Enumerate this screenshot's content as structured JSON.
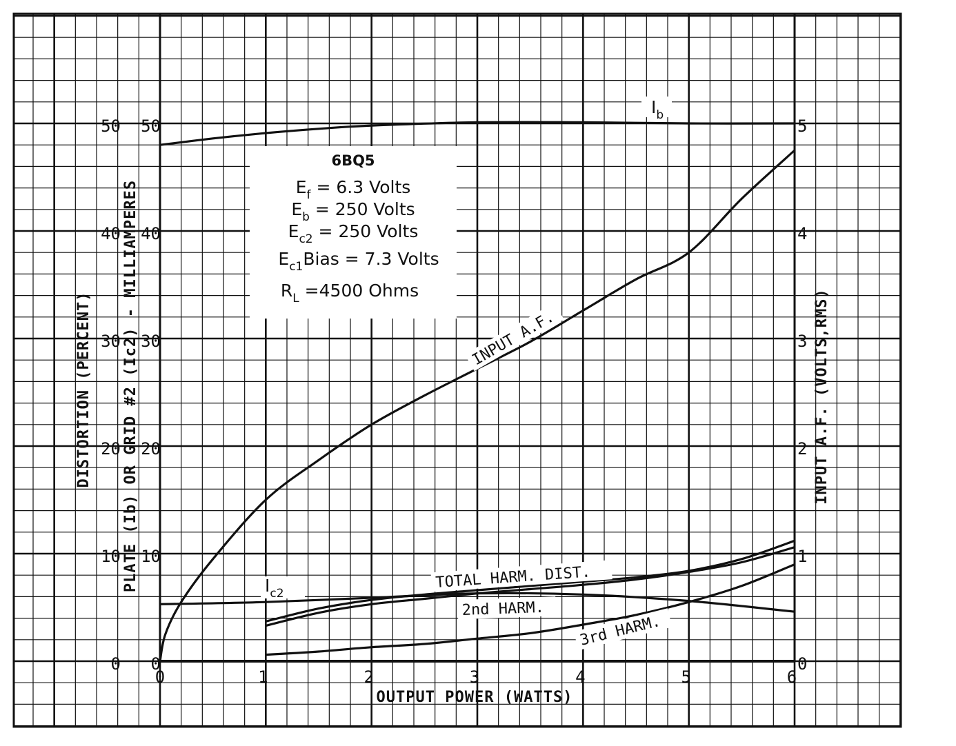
{
  "chart_data": {
    "type": "line",
    "title": "6BQ5",
    "conditions": [
      {
        "main": "E",
        "sub": "f",
        "rest": " = 6.3 Volts"
      },
      {
        "main": "E",
        "sub": "b",
        "rest": " = 250 Volts"
      },
      {
        "main": "E",
        "sub": "c2",
        "rest": " = 250 Volts"
      },
      {
        "main": "E",
        "sub": "c1",
        "rest": "Bias = 7.3 Volts"
      },
      {
        "main": "R",
        "sub": "L",
        "rest": " =4500 Ohms"
      }
    ],
    "xlabel": "OUTPUT POWER (WATTS)",
    "ylabel_distortion": "DISTORTION (PERCENT)",
    "ylabel_current": "PLATE (Ib) OR GRID #2 (Ic2) - MILLIAMPERES",
    "ylabel_right": "INPUT A.F. (VOLTS,RMS)",
    "xlim": [
      0,
      6
    ],
    "ylim_left": [
      0,
      50
    ],
    "ylim_right": [
      0,
      5
    ],
    "x_ticks": [
      "0",
      "1",
      "2",
      "3",
      "4",
      "5",
      "6"
    ],
    "y_ticks_distortion": [
      "0",
      "10",
      "20",
      "30",
      "40",
      "50"
    ],
    "y_ticks_current": [
      "0",
      "10",
      "20",
      "30",
      "40",
      "50"
    ],
    "y_ticks_right": [
      "0",
      "1",
      "2",
      "3",
      "4",
      "5"
    ],
    "grid": true,
    "series": [
      {
        "name": "Ib",
        "label_main": "I",
        "label_sub": "b",
        "axis": "left",
        "x": [
          0,
          0.5,
          1,
          1.5,
          2,
          3,
          4,
          5,
          6
        ],
        "y": [
          48.0,
          48.6,
          49.1,
          49.5,
          49.8,
          50.1,
          50.1,
          50.0,
          50.0
        ]
      },
      {
        "name": "Ic2",
        "label_main": "I",
        "label_sub": "c2",
        "axis": "left",
        "x": [
          0,
          1,
          2,
          3,
          4,
          5,
          6
        ],
        "y": [
          5.3,
          5.5,
          5.9,
          6.3,
          6.2,
          5.6,
          4.6
        ]
      },
      {
        "name": "INPUT A.F.",
        "label_main": "INPUT A.F.",
        "axis": "right",
        "x": [
          0,
          0.05,
          0.2,
          0.5,
          1,
          1.5,
          2,
          2.5,
          3,
          3.5,
          4,
          4.5,
          5,
          5.5,
          6
        ],
        "y": [
          0,
          0.25,
          0.55,
          0.95,
          1.5,
          1.87,
          2.2,
          2.47,
          2.72,
          2.97,
          3.26,
          3.55,
          3.8,
          4.3,
          4.75
        ]
      },
      {
        "name": "TOTAL HARM. DIST.",
        "label_main": "TOTAL HARM. DIST.",
        "axis": "left",
        "x": [
          1,
          1.5,
          2,
          2.5,
          3,
          3.5,
          4,
          4.5,
          5,
          5.5,
          6
        ],
        "y": [
          3.7,
          4.9,
          5.7,
          6.2,
          6.6,
          7.0,
          7.4,
          7.8,
          8.4,
          9.5,
          11.2
        ]
      },
      {
        "name": "2nd HARM.",
        "label_main": "2nd HARM.",
        "axis": "left",
        "x": [
          1,
          1.5,
          2,
          2.5,
          3,
          3.5,
          4,
          4.5,
          5,
          5.5,
          6
        ],
        "y": [
          3.3,
          4.5,
          5.3,
          5.8,
          6.3,
          6.7,
          7.1,
          7.6,
          8.3,
          9.2,
          10.6
        ]
      },
      {
        "name": "3rd HARM.",
        "label_main": "3rd HARM.",
        "axis": "left",
        "x": [
          1,
          1.5,
          2,
          2.5,
          3,
          3.5,
          4,
          4.5,
          5,
          5.5,
          6
        ],
        "y": [
          0.6,
          0.9,
          1.3,
          1.6,
          2.1,
          2.6,
          3.4,
          4.3,
          5.5,
          7.0,
          9.0
        ]
      }
    ]
  }
}
